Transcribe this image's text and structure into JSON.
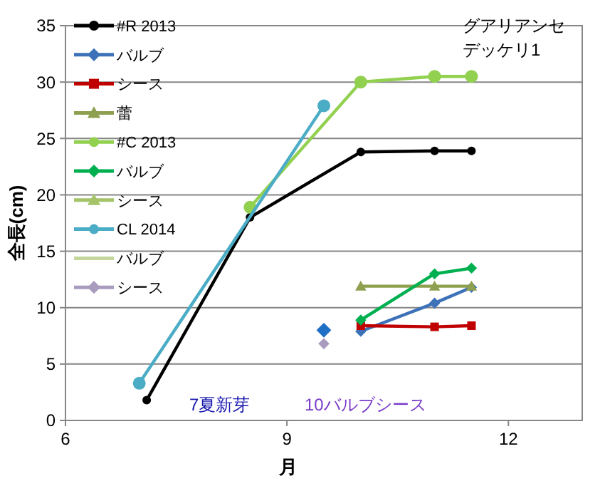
{
  "chart_data": {
    "type": "line",
    "xlabel": "月",
    "ylabel": "全長(cm)",
    "xlim": [
      6,
      13
    ],
    "xticks": [
      6,
      9,
      12
    ],
    "ylim": [
      0,
      35
    ],
    "yticks": [
      0,
      5,
      10,
      15,
      20,
      25,
      30,
      35
    ],
    "grid": "y",
    "legend": "top left",
    "annotations": [
      "グアリアンセ",
      "デッケリ1",
      "7夏新芽",
      "10バルブシース"
    ],
    "series": [
      {
        "name": "#R 2013",
        "color": "#000000",
        "marker": "circle",
        "x": [
          7.1,
          8.5,
          10,
          11,
          11.5
        ],
        "values": [
          1.8,
          18,
          23.8,
          23.9,
          23.9
        ]
      },
      {
        "name": "バルブ",
        "color": "#3d72b8",
        "marker": "diamond",
        "x": [
          10,
          11,
          11.5
        ],
        "values": [
          7.9,
          10.4,
          11.8
        ]
      },
      {
        "name": "シース",
        "color": "#c00000",
        "marker": "square",
        "x": [
          10,
          11,
          11.5
        ],
        "values": [
          8.4,
          8.3,
          8.4
        ]
      },
      {
        "name": "蕾",
        "color": "#8ea04f",
        "marker": "triangle",
        "x": [
          10,
          11,
          11.5
        ],
        "values": [
          11.9,
          11.9,
          11.9
        ]
      },
      {
        "name": "#C 2013",
        "color": "#92d050",
        "marker": "circle",
        "x": [
          8.5,
          10,
          11,
          11.5
        ],
        "values": [
          18.9,
          30,
          30.5,
          30.5
        ]
      },
      {
        "name": "バルブ",
        "color": "#00b050",
        "marker": "diamond",
        "x": [
          10,
          11,
          11.5
        ],
        "values": [
          8.9,
          13,
          13.5
        ]
      },
      {
        "name": "シース",
        "color": "#a5c46a",
        "marker": "triangle"
      },
      {
        "name": "CL 2014",
        "color": "#4bacc6",
        "marker": "circle",
        "x": [
          7,
          9.5
        ],
        "values": [
          3.3,
          27.9
        ]
      },
      {
        "name": "バルブ",
        "color": "#c3d69b",
        "marker": "none"
      },
      {
        "name": "シース",
        "color": "#a99bbd",
        "marker": "diamond",
        "x": [
          9.5
        ],
        "values": [
          6.8
        ]
      },
      {
        "type": "scatter",
        "color": "#1f6fc5",
        "marker": "diamond",
        "x": [
          9.5
        ],
        "values": [
          8
        ]
      }
    ]
  }
}
